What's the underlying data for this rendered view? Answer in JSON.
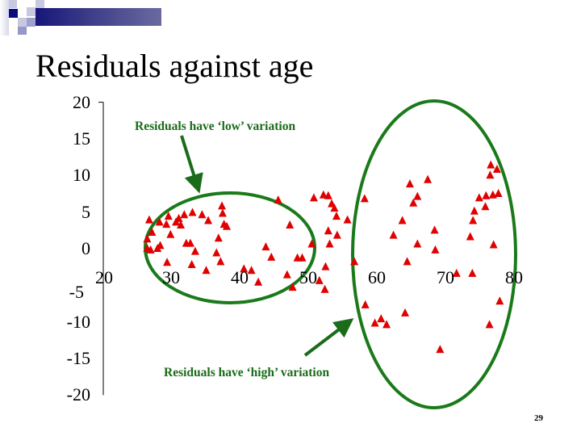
{
  "slide": {
    "title": "Residuals against age",
    "page_number": "29",
    "colors": {
      "banner_dark": "#0a0a7a",
      "banner_light": "#6a6aa0",
      "marker": "#e00000",
      "annotation": "#1a6b1a",
      "ellipse": "#1a7a1a"
    }
  },
  "annotations": {
    "low": "Residuals have ‘low’ variation",
    "high": "Residuals have ‘high’ variation"
  },
  "chart_data": {
    "type": "scatter",
    "title": "Residuals against age",
    "xlabel": "",
    "ylabel": "",
    "xlim": [
      20,
      80
    ],
    "ylim": [
      -20,
      20
    ],
    "x_ticks": [
      "20",
      "30",
      "40",
      "50",
      "60",
      "70",
      "80"
    ],
    "y_ticks": [
      "20",
      "15",
      "10",
      "5",
      "0",
      "-5",
      "-10",
      "-15",
      "-20"
    ],
    "grid": false,
    "legend": null,
    "marker": "triangle",
    "annotations": [
      {
        "text": "Residuals have ‘low’ variation",
        "region": "ages ~26-51"
      },
      {
        "text": "Residuals have ‘high’ variation",
        "region": "ages ~58-80"
      }
    ],
    "series": [
      {
        "name": "residuals",
        "points": [
          [
            26.7,
            3.9
          ],
          [
            26.4,
            1.3
          ],
          [
            26.4,
            0.0
          ],
          [
            26.9,
            -0.2
          ],
          [
            27.1,
            2.2
          ],
          [
            27.9,
            0.0
          ],
          [
            28.3,
            0.4
          ],
          [
            28.2,
            3.6
          ],
          [
            29.5,
            4.4
          ],
          [
            29.2,
            3.3
          ],
          [
            29.8,
            1.9
          ],
          [
            29.3,
            -1.9
          ],
          [
            30.6,
            3.6
          ],
          [
            31.0,
            4.1
          ],
          [
            31.3,
            3.2
          ],
          [
            31.8,
            4.6
          ],
          [
            32.1,
            0.7
          ],
          [
            32.7,
            0.7
          ],
          [
            32.9,
            -2.2
          ],
          [
            33.4,
            -0.4
          ],
          [
            33.0,
            4.9
          ],
          [
            34.4,
            4.6
          ],
          [
            35.3,
            3.8
          ],
          [
            35.0,
            -3.0
          ],
          [
            36.5,
            -0.6
          ],
          [
            37.3,
            5.8
          ],
          [
            37.4,
            4.8
          ],
          [
            37.6,
            3.3
          ],
          [
            36.8,
            1.4
          ],
          [
            37.1,
            -1.8
          ],
          [
            38.0,
            3.0
          ],
          [
            40.5,
            -2.8
          ],
          [
            41.6,
            -3.0
          ],
          [
            42.6,
            -4.6
          ],
          [
            43.7,
            0.2
          ],
          [
            44.5,
            -1.2
          ],
          [
            45.5,
            6.6
          ],
          [
            46.8,
            -3.6
          ],
          [
            47.2,
            3.2
          ],
          [
            47.6,
            -5.3
          ],
          [
            48.3,
            -1.3
          ],
          [
            49.0,
            -1.3
          ],
          [
            50.7,
            6.9
          ],
          [
            50.4,
            0.6
          ],
          [
            52.1,
            7.3
          ],
          [
            52.8,
            7.2
          ],
          [
            53.3,
            6.1
          ],
          [
            53.7,
            5.5
          ],
          [
            54.0,
            4.4
          ],
          [
            52.8,
            2.4
          ],
          [
            53.0,
            0.6
          ],
          [
            52.4,
            -2.5
          ],
          [
            54.1,
            1.8
          ],
          [
            55.6,
            3.9
          ],
          [
            51.5,
            -4.4
          ],
          [
            52.3,
            -5.6
          ],
          [
            56.6,
            -1.8
          ],
          [
            58.2,
            -7.7
          ],
          [
            58.1,
            6.8
          ],
          [
            59.6,
            -10.2
          ],
          [
            60.5,
            -9.6
          ],
          [
            61.3,
            -10.4
          ],
          [
            62.3,
            1.8
          ],
          [
            64.7,
            8.8
          ],
          [
            63.6,
            3.8
          ],
          [
            65.2,
            6.2
          ],
          [
            65.8,
            7.1
          ],
          [
            67.3,
            9.4
          ],
          [
            64.3,
            -1.8
          ],
          [
            64.0,
            -8.8
          ],
          [
            65.8,
            0.6
          ],
          [
            68.3,
            2.5
          ],
          [
            68.4,
            -0.2
          ],
          [
            69.1,
            -13.8
          ],
          [
            71.5,
            -3.4
          ],
          [
            73.5,
            1.6
          ],
          [
            73.9,
            3.8
          ],
          [
            74.1,
            5.1
          ],
          [
            73.8,
            -3.4
          ],
          [
            74.8,
            6.9
          ],
          [
            76.4,
            10.0
          ],
          [
            75.8,
            7.2
          ],
          [
            75.7,
            5.7
          ],
          [
            76.8,
            7.3
          ],
          [
            76.5,
            11.4
          ],
          [
            77.4,
            10.8
          ],
          [
            77.6,
            7.5
          ],
          [
            76.9,
            0.5
          ],
          [
            76.3,
            -10.4
          ],
          [
            77.8,
            -7.2
          ]
        ]
      }
    ]
  }
}
